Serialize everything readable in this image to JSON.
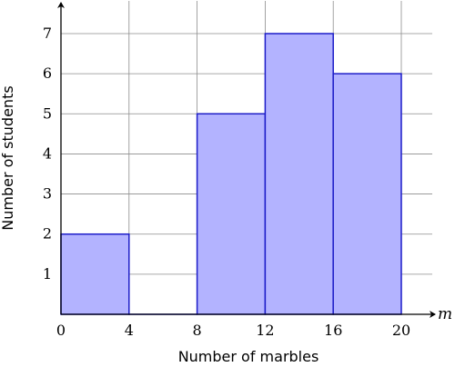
{
  "chart_data": {
    "type": "bar",
    "histogram": true,
    "bins": [
      {
        "from": 0,
        "to": 4,
        "value": 2
      },
      {
        "from": 4,
        "to": 8,
        "value": 0
      },
      {
        "from": 8,
        "to": 12,
        "value": 5
      },
      {
        "from": 12,
        "to": 16,
        "value": 7
      },
      {
        "from": 16,
        "to": 20,
        "value": 6
      }
    ],
    "xlabel": "Number of marbles",
    "ylabel": "Number of students",
    "x_axis_variable": "m",
    "xticks": [
      "0",
      "4",
      "8",
      "12",
      "16",
      "20"
    ],
    "yticks": [
      "1",
      "2",
      "3",
      "4",
      "5",
      "6",
      "7"
    ],
    "xlim": [
      0,
      20
    ],
    "ylim": [
      0,
      7
    ],
    "grid": true,
    "colors": {
      "bar_fill": "#b3b3ff",
      "bar_stroke": "#1c1cc8",
      "grid": "#8c8c8c",
      "axis": "#000000"
    }
  }
}
